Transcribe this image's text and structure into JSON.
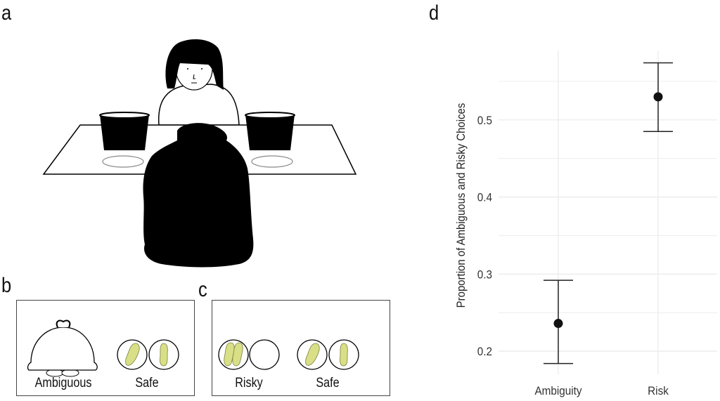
{
  "panels": {
    "a": {
      "label": "a"
    },
    "b": {
      "label": "b",
      "options": [
        "Ambiguous",
        "Safe"
      ]
    },
    "c": {
      "label": "c",
      "options": [
        "Risky",
        "Safe"
      ]
    },
    "d": {
      "label": "d"
    }
  },
  "colors": {
    "peanut": "#d8df86",
    "peanut_edge": "#7a8040",
    "grid": "#ebebeb",
    "ink": "#111111"
  },
  "chart_data": {
    "type": "scatter",
    "subtype": "point-with-errorbars",
    "title": "",
    "xlabel": "",
    "ylabel": "Proportion of Ambiguous and Risky Choices",
    "categories": [
      "Ambiguity",
      "Risk"
    ],
    "values": [
      0.236,
      0.53
    ],
    "error_lower": [
      0.184,
      0.485
    ],
    "error_upper": [
      0.292,
      0.574
    ],
    "ylim": [
      0.17,
      0.59
    ],
    "yticks": [
      0.2,
      0.3,
      0.4,
      0.5
    ],
    "ytick_labels": [
      "0.2",
      "0.3",
      "0.4",
      "0.5"
    ],
    "minor_yticks": [
      0.25,
      0.35,
      0.45,
      0.55
    ],
    "grid": true,
    "legend": "none"
  }
}
